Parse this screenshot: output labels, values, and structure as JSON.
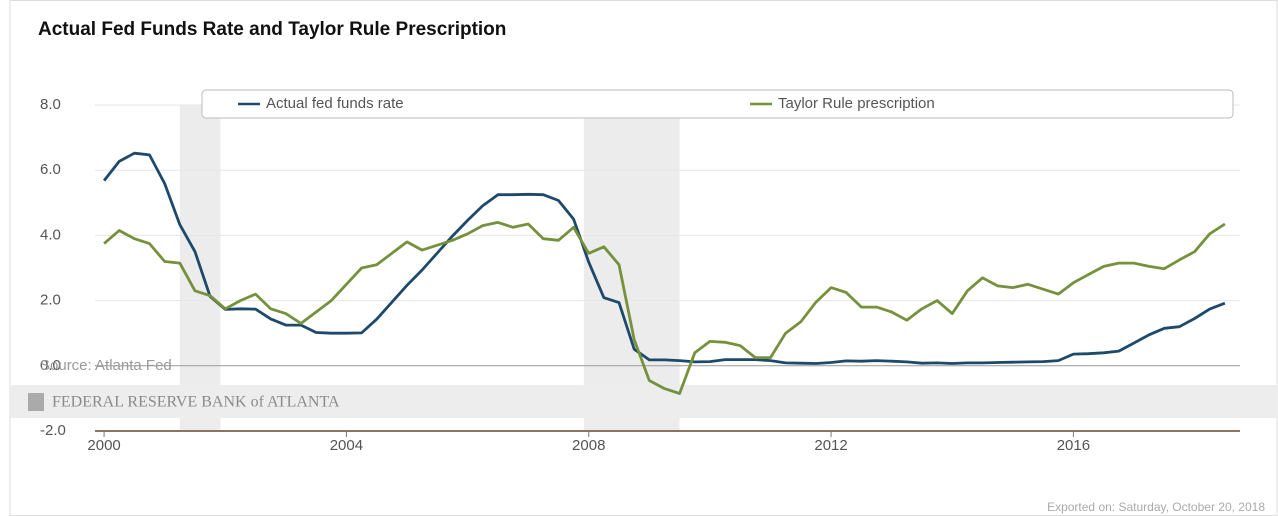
{
  "chart_data": {
    "type": "line",
    "title": "Actual Fed Funds Rate and Taylor Rule Prescription",
    "source": "Source: Atlanta Fed",
    "watermark": "FEDERAL RESERVE BANK of ATLANTA",
    "footer": "Exported on: Saturday, October 20, 2018",
    "x": [
      2000,
      2000.25,
      2000.5,
      2000.75,
      2001,
      2001.25,
      2001.5,
      2001.75,
      2002,
      2002.25,
      2002.5,
      2002.75,
      2003,
      2003.25,
      2003.5,
      2003.75,
      2004,
      2004.25,
      2004.5,
      2004.75,
      2005,
      2005.25,
      2005.5,
      2005.75,
      2006,
      2006.25,
      2006.5,
      2006.75,
      2007,
      2007.25,
      2007.5,
      2007.75,
      2008,
      2008.25,
      2008.5,
      2008.75,
      2009,
      2009.25,
      2009.5,
      2009.75,
      2010,
      2010.25,
      2010.5,
      2010.75,
      2011,
      2011.25,
      2011.5,
      2011.75,
      2012,
      2012.25,
      2012.5,
      2012.75,
      2013,
      2013.25,
      2013.5,
      2013.75,
      2014,
      2014.25,
      2014.5,
      2014.75,
      2015,
      2015.25,
      2015.5,
      2015.75,
      2016,
      2016.25,
      2016.5,
      2016.75,
      2017,
      2017.25,
      2017.5,
      2017.75,
      2018,
      2018.25,
      2018.5
    ],
    "series": [
      {
        "name": "Actual fed funds rate",
        "color": "#1d4a6b",
        "values": [
          5.68,
          6.27,
          6.52,
          6.47,
          5.59,
          4.33,
          3.5,
          2.13,
          1.73,
          1.75,
          1.74,
          1.44,
          1.25,
          1.25,
          1.02,
          1.0,
          1.0,
          1.01,
          1.43,
          1.95,
          2.47,
          2.94,
          3.46,
          3.98,
          4.46,
          4.91,
          5.25,
          5.25,
          5.26,
          5.25,
          5.07,
          4.5,
          3.18,
          2.09,
          1.94,
          0.51,
          0.18,
          0.18,
          0.16,
          0.12,
          0.13,
          0.19,
          0.19,
          0.19,
          0.16,
          0.09,
          0.08,
          0.07,
          0.1,
          0.15,
          0.14,
          0.16,
          0.14,
          0.12,
          0.08,
          0.09,
          0.07,
          0.09,
          0.09,
          0.1,
          0.11,
          0.12,
          0.13,
          0.16,
          0.36,
          0.37,
          0.4,
          0.45,
          0.7,
          0.95,
          1.15,
          1.2,
          1.45,
          1.74,
          1.92
        ]
      },
      {
        "name": "Taylor Rule prescription",
        "color": "#76913c",
        "values": [
          3.75,
          4.15,
          3.9,
          3.75,
          3.2,
          3.15,
          2.3,
          2.15,
          1.75,
          2.0,
          2.2,
          1.75,
          1.6,
          1.3,
          1.65,
          2.0,
          2.5,
          3.0,
          3.1,
          3.45,
          3.8,
          3.55,
          3.7,
          3.85,
          4.05,
          4.3,
          4.4,
          4.25,
          4.35,
          3.9,
          3.85,
          4.25,
          3.45,
          3.65,
          3.1,
          0.8,
          -0.45,
          -0.7,
          -0.85,
          0.4,
          0.75,
          0.72,
          0.62,
          0.25,
          0.25,
          1.0,
          1.35,
          1.95,
          2.4,
          2.25,
          1.8,
          1.8,
          1.65,
          1.4,
          1.75,
          2.0,
          1.6,
          2.3,
          2.7,
          2.45,
          2.4,
          2.5,
          2.35,
          2.2,
          2.55,
          2.8,
          3.05,
          3.15,
          3.15,
          3.05,
          2.98,
          3.25,
          3.5,
          4.05,
          4.35
        ]
      }
    ],
    "recessions": [
      [
        2001.25,
        2001.92
      ],
      [
        2007.92,
        2009.5
      ]
    ],
    "xlim": [
      1999.85,
      2018.75
    ],
    "xticks": [
      2000,
      2004,
      2008,
      2012,
      2016
    ],
    "ylim": [
      -2,
      8
    ],
    "yticks": [
      {
        "value": -2,
        "label": "-2.0"
      },
      {
        "value": 0,
        "label": "0.0"
      },
      {
        "value": 2,
        "label": "2.0"
      },
      {
        "value": 4,
        "label": "4.0"
      },
      {
        "value": 6,
        "label": "6.0"
      },
      {
        "value": 8,
        "label": "8.0"
      }
    ],
    "grid": true,
    "legend": "top"
  }
}
